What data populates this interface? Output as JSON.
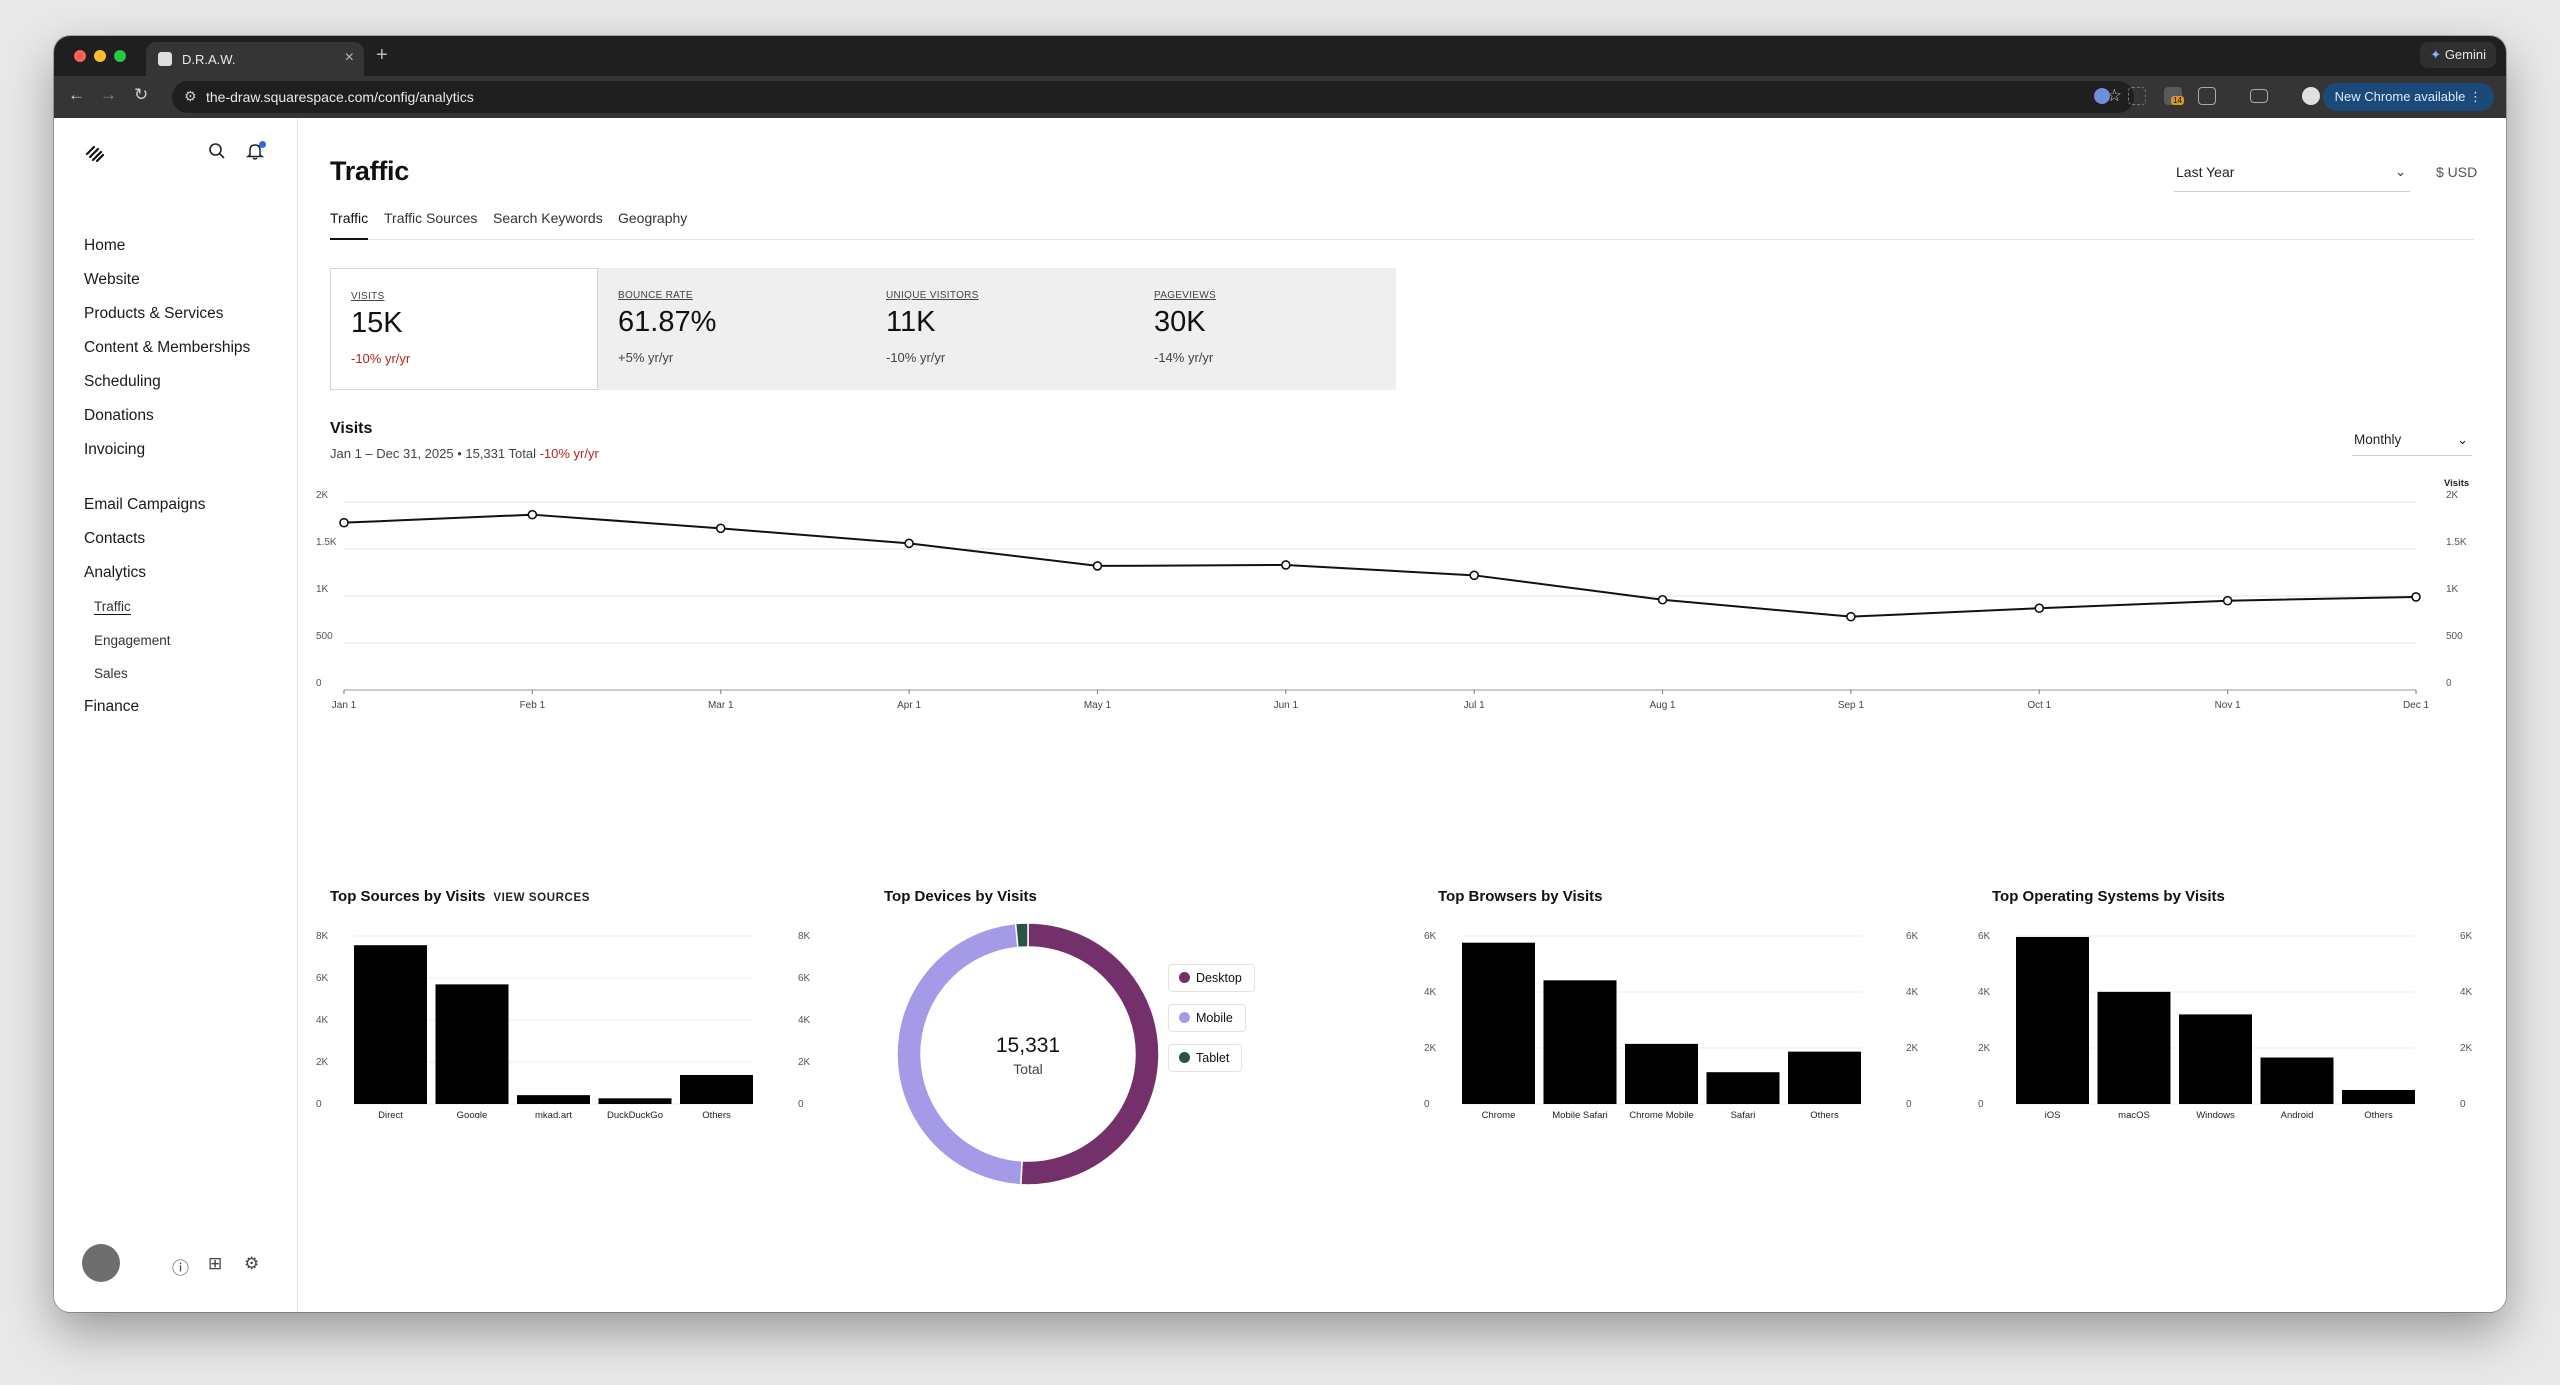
{
  "browser": {
    "tab_title": "D.R.A.W.",
    "url": "the-draw.squarespace.com/config/analytics",
    "gemini_label": "Gemini",
    "update_label": "New Chrome available",
    "extension_badge": "14"
  },
  "sidebar": {
    "nav": [
      "Home",
      "Website",
      "Products & Services",
      "Content & Memberships",
      "Scheduling",
      "Donations",
      "Invoicing"
    ],
    "nav2": [
      "Email Campaigns",
      "Contacts",
      "Analytics"
    ],
    "analytics_sub": [
      "Traffic",
      "Engagement",
      "Sales"
    ],
    "finance": "Finance"
  },
  "header": {
    "title": "Traffic",
    "range": "Last Year",
    "currency": "$ USD",
    "tabs": [
      "Traffic",
      "Traffic Sources",
      "Search Keywords",
      "Geography"
    ]
  },
  "metrics": [
    {
      "label": "VISITS",
      "value": "15K",
      "change": "-10% yr/yr"
    },
    {
      "label": "BOUNCE RATE",
      "value": "61.87%",
      "change": "+5% yr/yr"
    },
    {
      "label": "UNIQUE VISITORS",
      "value": "11K",
      "change": "-10% yr/yr"
    },
    {
      "label": "PAGEVIEWS",
      "value": "30K",
      "change": "-14% yr/yr"
    }
  ],
  "visits": {
    "title": "Visits",
    "subtitle": "Jan 1 – Dec 31, 2025 • 15,331 Total",
    "subtitle_change": "-10% yr/yr",
    "granularity": "Monthly"
  },
  "chart_data": [
    {
      "type": "line",
      "series_label": "Visits",
      "x": [
        "Jan 1",
        "Feb 1",
        "Mar 1",
        "Apr 1",
        "May 1",
        "Jun 1",
        "Jul 1",
        "Aug 1",
        "Sep 1",
        "Oct 1",
        "Nov 1",
        "Dec 1"
      ],
      "y": [
        1780,
        1865,
        1720,
        1560,
        1320,
        1330,
        1220,
        960,
        780,
        870,
        950,
        990
      ],
      "ylim": [
        0,
        2000
      ],
      "yticks": [
        "0",
        "500",
        "1K",
        "1.5K",
        "2K"
      ],
      "grid": true
    },
    {
      "type": "bar",
      "title": "Top Sources by Visits",
      "link": "VIEW SOURCES",
      "xlabel": "Top Sources",
      "categories": [
        "Direct",
        "Google",
        "mkad.art",
        "DuckDuckGo",
        "Others"
      ],
      "labels": [
        "7,562",
        "5,696",
        "421",
        "270",
        "1,382"
      ],
      "values": [
        7562,
        5696,
        421,
        270,
        1382
      ],
      "ylim": [
        0,
        8000
      ],
      "yticks": [
        "0",
        "2K",
        "4K",
        "6K",
        "8K"
      ]
    },
    {
      "type": "pie",
      "title": "Top Devices by Visits",
      "total_label": "15,331",
      "total_caption": "Total",
      "categories": [
        "Desktop",
        "Mobile",
        "Tablet"
      ],
      "values": [
        7800,
        7300,
        231
      ],
      "colors": [
        "#74306a",
        "#a59ae8",
        "#2b5348"
      ]
    },
    {
      "type": "bar",
      "title": "Top Browsers by Visits",
      "xlabel": "Top Browsers",
      "categories": [
        "Chrome",
        "Mobile Safari",
        "Chrome Mobile",
        "Safari",
        "Others"
      ],
      "labels": [
        "5,761",
        "4,417",
        "2,147",
        "1,136",
        "1,870"
      ],
      "values": [
        5761,
        4417,
        2147,
        1136,
        1870
      ],
      "ylim": [
        0,
        6000
      ],
      "yticks": [
        "0",
        "2K",
        "4K",
        "6K"
      ],
      "ytick_values": [
        0,
        2000,
        4000,
        6000
      ]
    },
    {
      "type": "bar",
      "title": "Top Operating Systems by Visits",
      "xlabel": "Top Operating Systems",
      "categories": [
        "iOS",
        "macOS",
        "Windows",
        "Android",
        "Others"
      ],
      "labels": [
        "5,965",
        "4,005",
        "3,200",
        "1,660",
        "501"
      ],
      "values": [
        5965,
        4005,
        3200,
        1660,
        501
      ],
      "ylim": [
        0,
        6000
      ],
      "yticks": [
        "0",
        "2K",
        "4K",
        "6K"
      ]
    }
  ]
}
